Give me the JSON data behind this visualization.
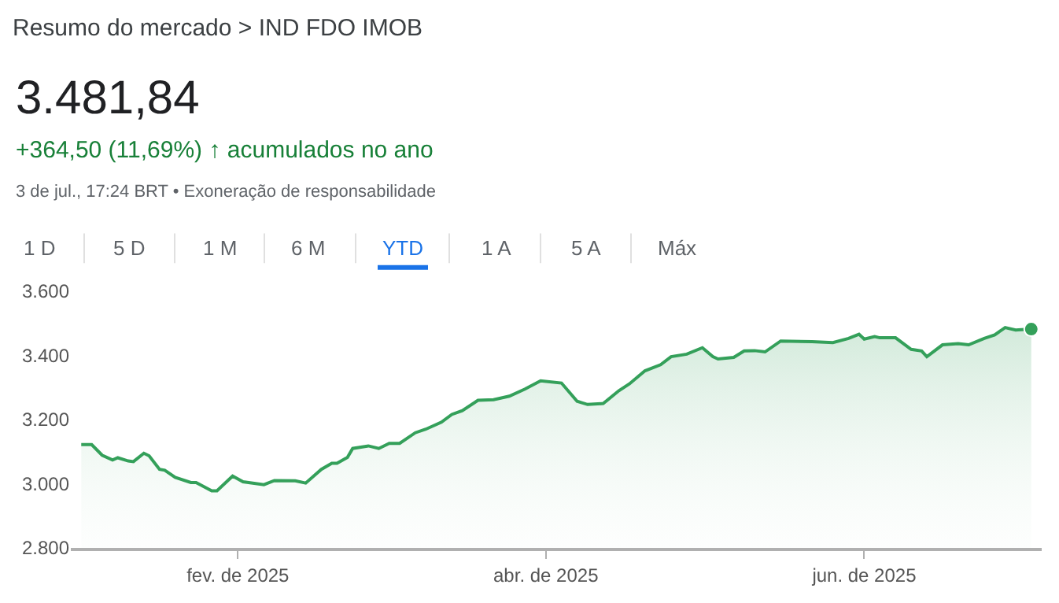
{
  "chart_data": {
    "type": "area",
    "title": "Resumo do mercado > IND FDO IMOB",
    "annotations": [
      "3.481,84",
      "+364,50 (11,69%) ↑ acumulados no ano",
      "3 de jul., 17:24 BRT • Exoneração de responsabilidade",
      "1 D",
      "5 D",
      "1 M",
      "6 M",
      "YTD",
      "1 A",
      "5 A",
      "Máx"
    ],
    "x": [
      "2025-01-02",
      "2025-01-04",
      "2025-01-06",
      "2025-01-08",
      "2025-01-09",
      "2025-01-11",
      "2025-01-12",
      "2025-01-14",
      "2025-01-15",
      "2025-01-17",
      "2025-01-18",
      "2025-01-20",
      "2025-01-23",
      "2025-01-24",
      "2025-01-27",
      "2025-01-28",
      "2025-01-31",
      "2025-02-02",
      "2025-02-06",
      "2025-02-08",
      "2025-02-12",
      "2025-02-14",
      "2025-02-17",
      "2025-02-19",
      "2025-02-20",
      "2025-02-22",
      "2025-02-23",
      "2025-02-26",
      "2025-02-28",
      "2025-03-02",
      "2025-03-04",
      "2025-03-07",
      "2025-03-09",
      "2025-03-12",
      "2025-03-14",
      "2025-03-16",
      "2025-03-19",
      "2025-03-22",
      "2025-03-25",
      "2025-03-28",
      "2025-03-31",
      "2025-04-04",
      "2025-04-07",
      "2025-04-09",
      "2025-04-12",
      "2025-04-15",
      "2025-04-17",
      "2025-04-20",
      "2025-04-23",
      "2025-04-25",
      "2025-04-28",
      "2025-05-01",
      "2025-05-03",
      "2025-05-04",
      "2025-05-07",
      "2025-05-09",
      "2025-05-11",
      "2025-05-13",
      "2025-05-16",
      "2025-05-22",
      "2025-05-26",
      "2025-05-29",
      "2025-05-31",
      "2025-06-01",
      "2025-06-03",
      "2025-06-04",
      "2025-06-07",
      "2025-06-10",
      "2025-06-12",
      "2025-06-13",
      "2025-06-16",
      "2025-06-19",
      "2025-06-21",
      "2025-06-24",
      "2025-06-26",
      "2025-06-28",
      "2025-06-30",
      "2025-07-03"
    ],
    "series": [
      {
        "color": "#34a05a",
        "values": [
          3122,
          3122,
          3089,
          3074,
          3081,
          3071,
          3069,
          3095,
          3087,
          3045,
          3042,
          3020,
          3004,
          3004,
          2978,
          2978,
          3024,
          3006,
          2997,
          3010,
          3009,
          3002,
          3045,
          3064,
          3064,
          3082,
          3110,
          3118,
          3110,
          3126,
          3126,
          3159,
          3170,
          3192,
          3216,
          3228,
          3260,
          3262,
          3273,
          3295,
          3321,
          3314,
          3257,
          3247,
          3250,
          3290,
          3311,
          3352,
          3371,
          3396,
          3404,
          3424,
          3396,
          3389,
          3394,
          3414,
          3415,
          3411,
          3445,
          3443,
          3440,
          3453,
          3466,
          3451,
          3459,
          3455,
          3455,
          3419,
          3414,
          3396,
          3433,
          3437,
          3433,
          3453,
          3464,
          3487,
          3479,
          3482
        ]
      }
    ],
    "ylim": [
      2800,
      3600
    ],
    "yticks": [
      {
        "value": 2800,
        "label": "2.800"
      },
      {
        "value": 3000,
        "label": "3.000"
      },
      {
        "value": 3200,
        "label": "3.200"
      },
      {
        "value": 3400,
        "label": "3.400"
      },
      {
        "value": 3600,
        "label": "3.600"
      }
    ],
    "xlim": [
      "2024-12-31",
      "2025-07-05"
    ],
    "xticks": [
      {
        "value": "2025-02-01",
        "label": "fev. de 2025"
      },
      {
        "value": "2025-04-01",
        "label": "abr. de 2025"
      },
      {
        "value": "2025-06-01",
        "label": "jun. de 2025"
      }
    ],
    "grid": false
  }
}
